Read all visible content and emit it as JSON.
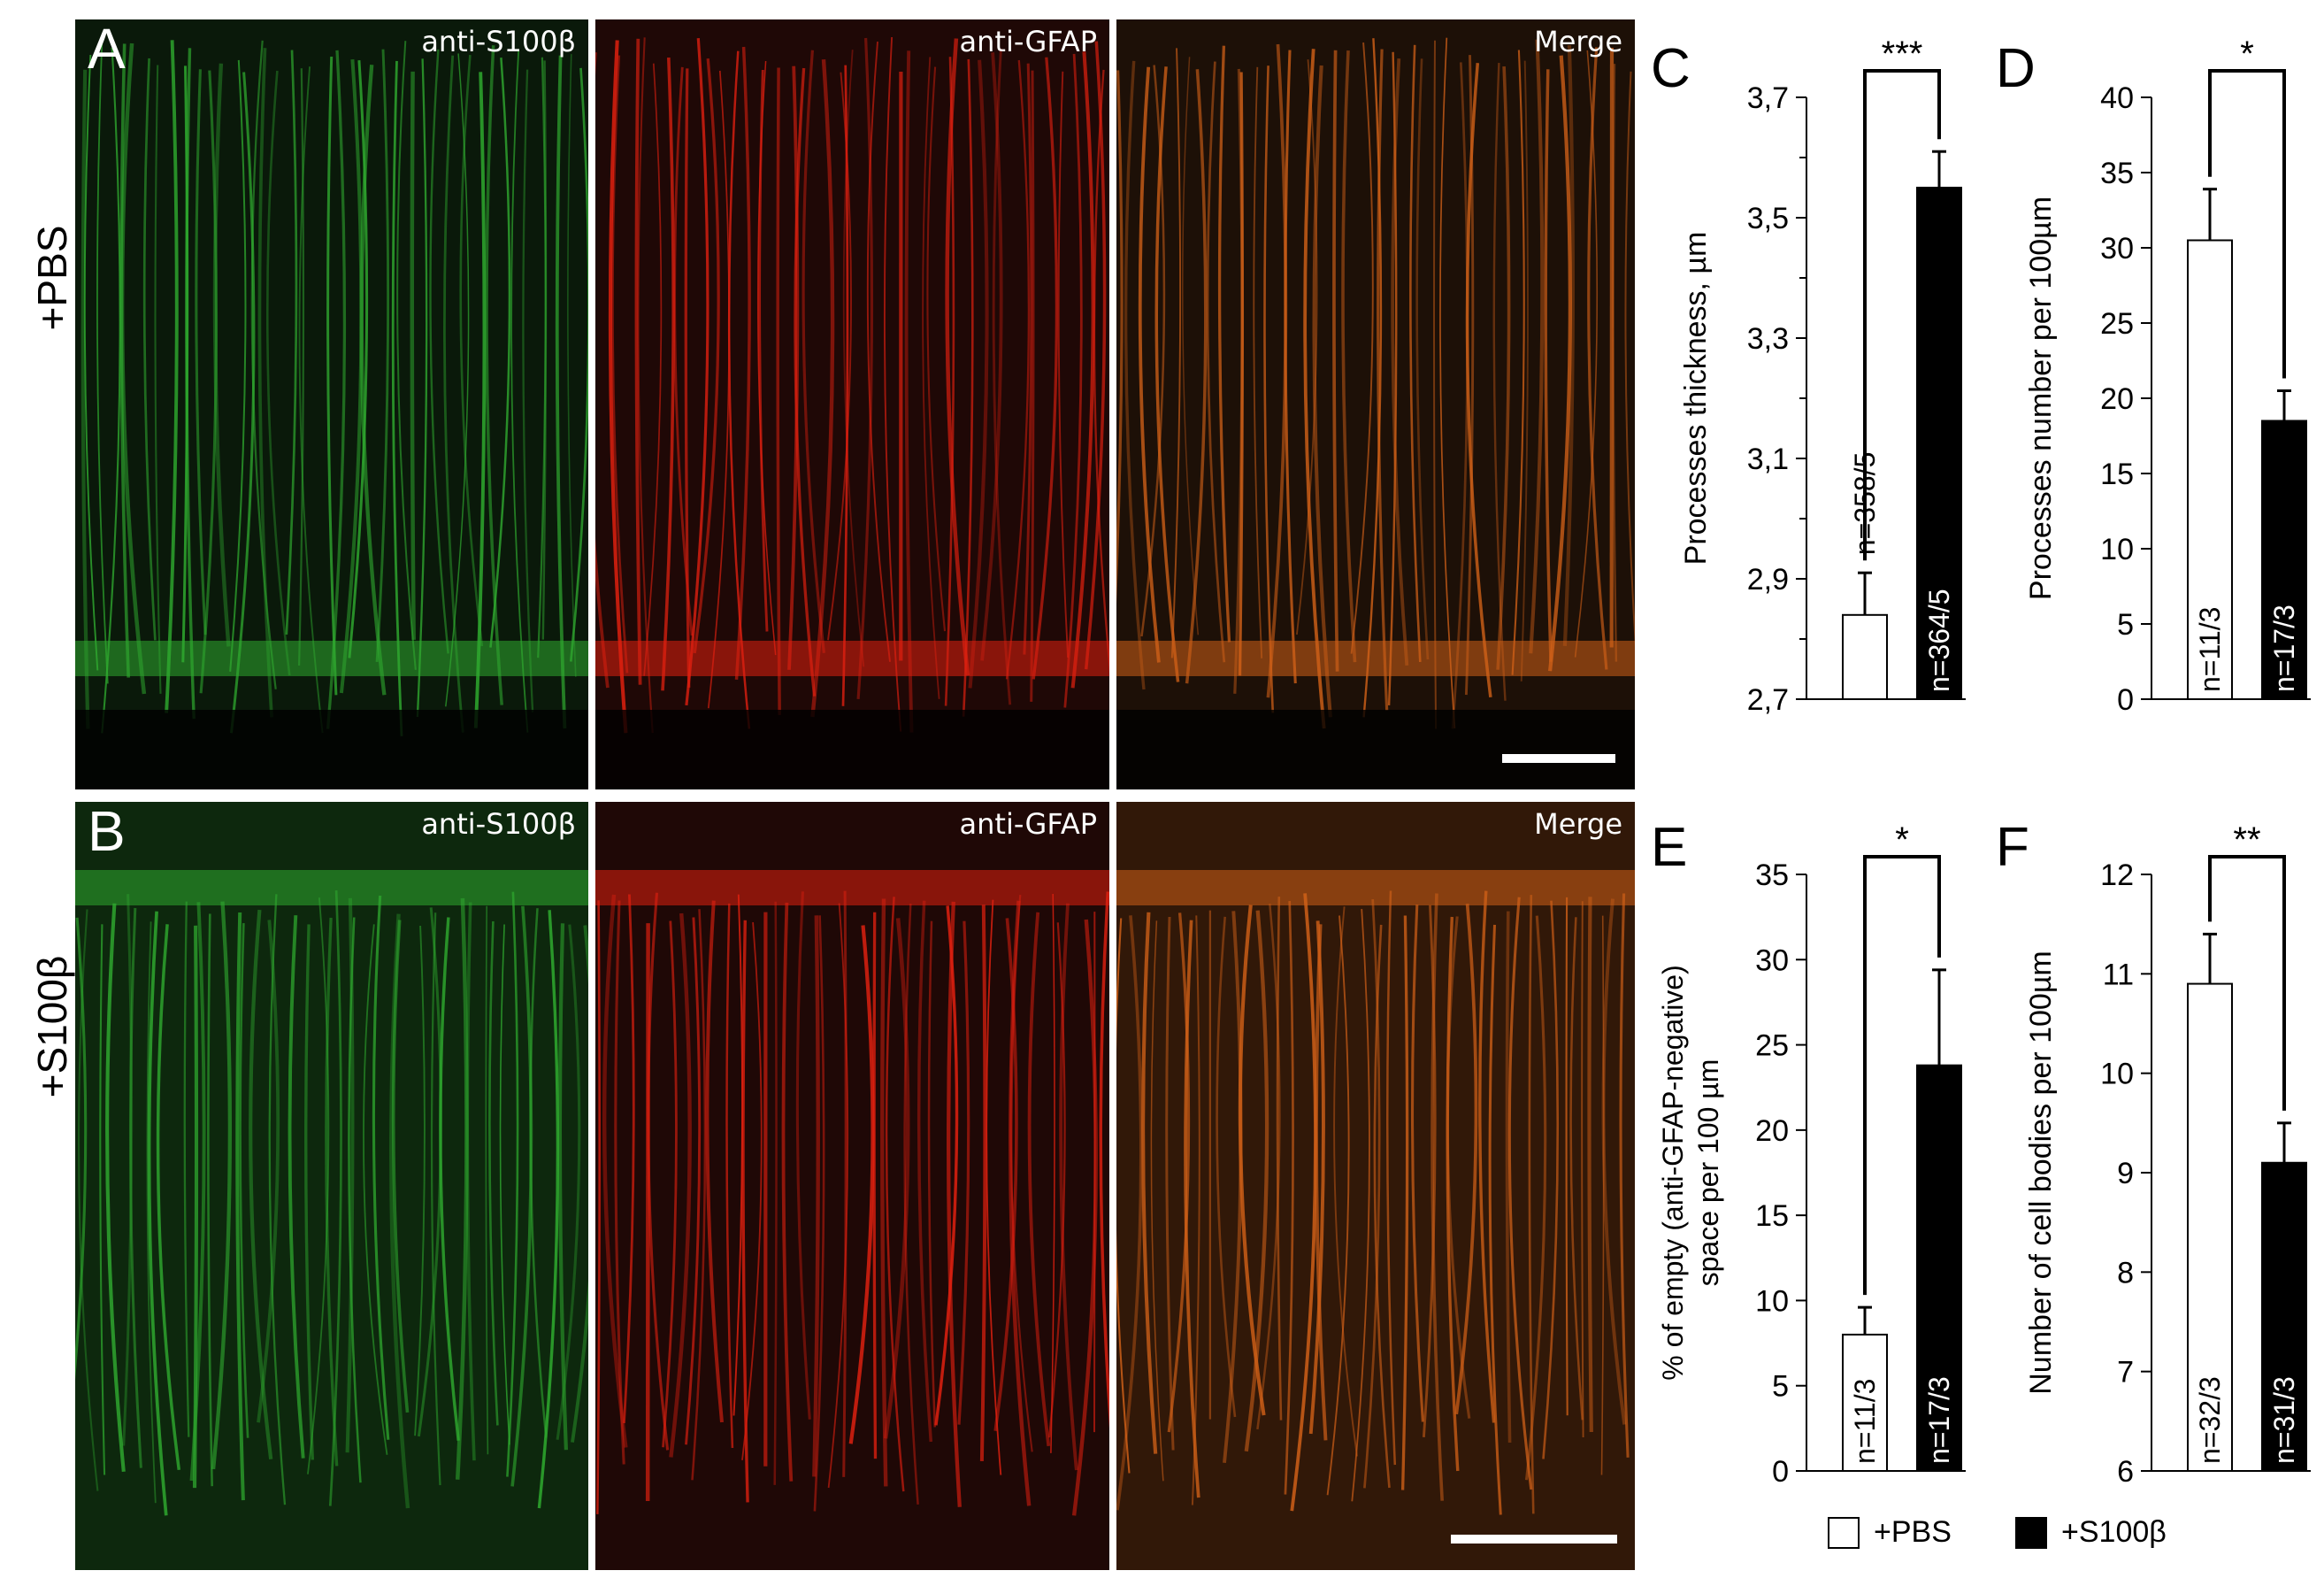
{
  "figure": {
    "row_labels": [
      "+PBS",
      "+S100β"
    ],
    "panels": [
      {
        "letter": "A",
        "images": [
          {
            "label": "anti-S100β",
            "color": "#2faa2f"
          },
          {
            "label": "anti-GFAP",
            "color": "#e02010"
          },
          {
            "label": "Merge",
            "color": "#d06018"
          }
        ]
      },
      {
        "letter": "B",
        "images": [
          {
            "label": "anti-S100β",
            "color": "#2faa2f"
          },
          {
            "label": "anti-GFAP",
            "color": "#e02010"
          },
          {
            "label": "Merge",
            "color": "#d06018"
          }
        ]
      }
    ],
    "legend": [
      {
        "label": "+PBS",
        "fill": "#ffffff"
      },
      {
        "label": "+S100β",
        "fill": "#000000"
      }
    ]
  },
  "chart_data": [
    {
      "panel": "C",
      "type": "bar",
      "ylabel": "Processes thickness, µm",
      "ylim": [
        2.7,
        3.7
      ],
      "yticks": [
        "2,7",
        "2,9",
        "3,1",
        "3,3",
        "3,5",
        "3,7"
      ],
      "significance": "***",
      "bars": [
        {
          "value": 2.84,
          "error": 0.07,
          "n": "n=358/5",
          "fill": "#ffffff"
        },
        {
          "value": 3.55,
          "error": 0.06,
          "n": "n=364/5",
          "fill": "#000000"
        }
      ]
    },
    {
      "panel": "D",
      "type": "bar",
      "ylabel": "Processes number  per 100µm",
      "ylim": [
        0,
        40
      ],
      "yticks": [
        "0",
        "5",
        "10",
        "15",
        "20",
        "25",
        "30",
        "35",
        "40"
      ],
      "significance": "*",
      "bars": [
        {
          "value": 30.5,
          "error": 3.4,
          "n": "n=11/3",
          "fill": "#ffffff"
        },
        {
          "value": 18.5,
          "error": 2.0,
          "n": "n=17/3",
          "fill": "#000000"
        }
      ]
    },
    {
      "panel": "E",
      "type": "bar",
      "ylabel": "% of empty (anti-GFAP-negative)",
      "ylabel2": "space per 100 µm",
      "ylim": [
        0,
        35
      ],
      "yticks": [
        "0",
        "5",
        "10",
        "15",
        "20",
        "25",
        "30",
        "35"
      ],
      "significance": "*",
      "bars": [
        {
          "value": 8.0,
          "error": 1.6,
          "n": "n=11/3",
          "fill": "#ffffff"
        },
        {
          "value": 23.8,
          "error": 5.6,
          "n": "n=17/3",
          "fill": "#000000"
        }
      ]
    },
    {
      "panel": "F",
      "type": "bar",
      "ylabel": "Number  of cell bodies  per 100µm",
      "ylim": [
        6,
        12
      ],
      "yticks": [
        "6",
        "7",
        "8",
        "9",
        "10",
        "11",
        "12"
      ],
      "significance": "**",
      "bars": [
        {
          "value": 10.9,
          "error": 0.5,
          "n": "n=32/3",
          "fill": "#ffffff"
        },
        {
          "value": 9.1,
          "error": 0.4,
          "n": "n=31/3",
          "fill": "#000000"
        }
      ]
    }
  ]
}
